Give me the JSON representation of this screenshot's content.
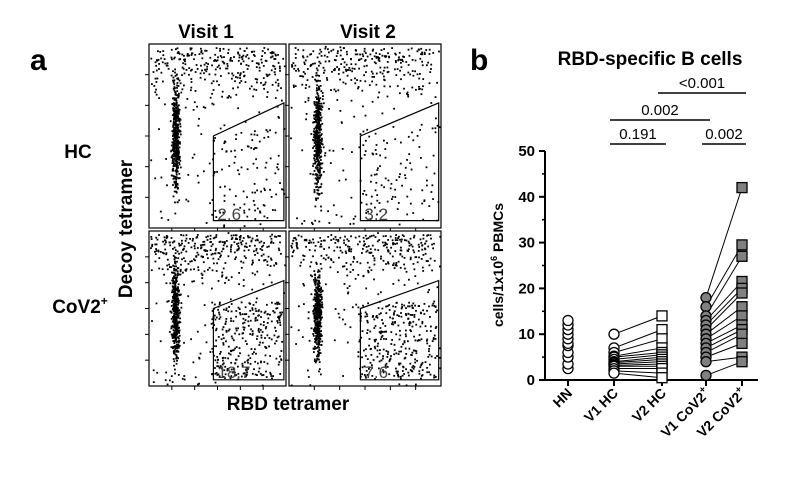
{
  "chart_data": [
    {
      "type": "scatter",
      "panel_label": "a",
      "column_labels": [
        "Visit 1",
        "Visit 2"
      ],
      "row_labels": [
        "HC",
        "CoV2+"
      ],
      "xlabel": "RBD tetramer",
      "ylabel": "Decoy tetramer",
      "grid": false,
      "gate_values": [
        [
          "2.6",
          "3.2"
        ],
        [
          "18.7",
          "7.6"
        ]
      ]
    },
    {
      "type": "scatter",
      "panel_label": "b",
      "title": "RBD-specific B cells",
      "ylabel": "cells/1x10^6 PBMCs",
      "ylim": [
        0,
        50
      ],
      "y_ticks": [
        "0",
        "10",
        "20",
        "30",
        "40",
        "50"
      ],
      "grid": false,
      "categories": [
        "HN",
        "V1 HC",
        "V2 HC",
        "V1 CoV2+",
        "V2 CoV2+"
      ],
      "series": [
        {
          "values": [
            2.5,
            3.5,
            5,
            6,
            7.5,
            8,
            9,
            10,
            11,
            12,
            13
          ]
        },
        {
          "values": [
            10,
            7,
            6,
            5.2,
            5,
            4.5,
            4,
            3.8,
            3.5,
            3.2,
            3,
            2.5,
            2,
            1.5
          ]
        },
        {
          "values": [
            14,
            11,
            9,
            7,
            6,
            5.5,
            5,
            4.5,
            4,
            3.5,
            3,
            2.5,
            1.5,
            0.5
          ]
        },
        {
          "values": [
            18,
            16,
            14,
            13,
            12,
            11,
            10,
            9,
            8,
            7,
            6,
            5,
            4,
            1
          ]
        },
        {
          "values": [
            42,
            29.5,
            27,
            21.5,
            20,
            19,
            16,
            14,
            12,
            11,
            10,
            8,
            5,
            4
          ]
        }
      ],
      "pairs": [
        {
          "from": "V1 HC",
          "to": "V2 HC",
          "v1": [
            10,
            7,
            6,
            5.2,
            5,
            4.5,
            4,
            3.8,
            3.5,
            3.2,
            3,
            2.5,
            2,
            1.5
          ],
          "v2": [
            14,
            11,
            9,
            7,
            6,
            5.5,
            5,
            4.5,
            4,
            3.5,
            3,
            2.5,
            1.5,
            0.5
          ]
        },
        {
          "from": "V1 CoV2+",
          "to": "V2 CoV2+",
          "v1": [
            18,
            16,
            14,
            13,
            12,
            11,
            10,
            9,
            8,
            7,
            6,
            5,
            4,
            1
          ],
          "v2": [
            42,
            29.5,
            27,
            21.5,
            20,
            19,
            16,
            14,
            12,
            11,
            10,
            8,
            5,
            4
          ]
        }
      ],
      "significance": [
        {
          "label": "<0.001",
          "from": "V2 HC",
          "to": "V2 CoV2+"
        },
        {
          "label": "0.002",
          "from": "V1 HC",
          "to": "V1 CoV2+"
        },
        {
          "label": "0.191",
          "from": "V1 HC",
          "to": "V2 HC"
        },
        {
          "label": "0.002",
          "from": "V1 CoV2+",
          "to": "V2 CoV2+"
        }
      ]
    }
  ]
}
